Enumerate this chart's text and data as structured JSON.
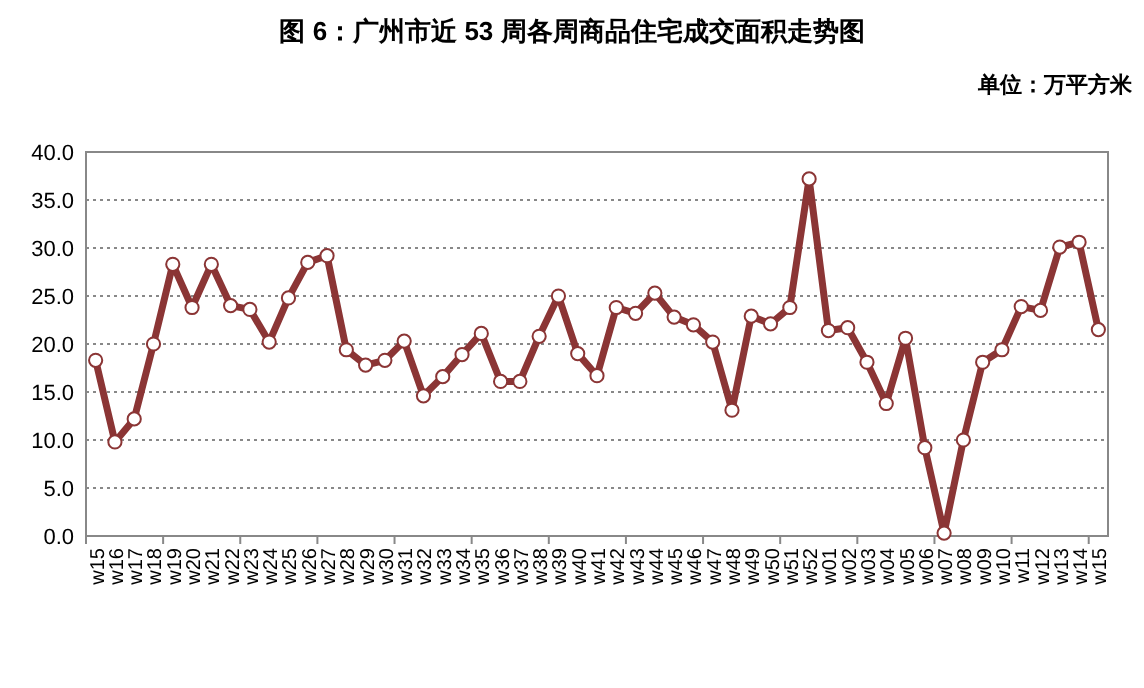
{
  "chart_data": {
    "type": "line",
    "title": "图 6：广州市近 53 周各周商品住宅成交面积走势图",
    "ylabel": "单位：万平方米",
    "categories": [
      "w15",
      "w16",
      "w17",
      "w18",
      "w19",
      "w20",
      "w21",
      "w22",
      "w23",
      "w24",
      "w25",
      "w26",
      "w27",
      "w28",
      "w29",
      "w30",
      "w31",
      "w32",
      "w33",
      "w34",
      "w35",
      "w36",
      "w37",
      "w38",
      "w39",
      "w40",
      "w41",
      "w42",
      "w43",
      "w44",
      "w45",
      "w46",
      "w47",
      "w48",
      "w49",
      "w50",
      "w51",
      "w52",
      "w01",
      "w02",
      "w03",
      "w04",
      "w05",
      "w06",
      "w07",
      "w08",
      "w09",
      "w10",
      "w11",
      "w12",
      "w13",
      "w14",
      "w15"
    ],
    "series": [
      {
        "color": "#8b3535",
        "values": [
          18.3,
          9.8,
          12.2,
          20.0,
          28.3,
          23.8,
          28.3,
          24.0,
          23.6,
          20.2,
          24.8,
          28.5,
          29.2,
          19.4,
          17.8,
          18.3,
          20.3,
          14.6,
          16.6,
          18.9,
          21.1,
          16.1,
          16.1,
          20.8,
          25.0,
          19.0,
          16.7,
          23.8,
          23.2,
          25.3,
          22.8,
          22.0,
          20.2,
          13.1,
          22.9,
          22.1,
          23.8,
          37.2,
          21.4,
          21.7,
          18.1,
          13.8,
          20.6,
          9.2,
          0.3,
          10.0,
          18.1,
          19.4,
          23.9,
          23.5,
          30.1,
          30.6,
          21.5
        ]
      }
    ],
    "ylim": [
      0,
      40
    ],
    "yticks": [
      {
        "value": 0,
        "label": "0.0"
      },
      {
        "value": 5,
        "label": "5.0"
      },
      {
        "value": 10,
        "label": "10.0"
      },
      {
        "value": 15,
        "label": "15.0"
      },
      {
        "value": 20,
        "label": "20.0"
      },
      {
        "value": 25,
        "label": "25.0"
      },
      {
        "value": 30,
        "label": "30.0"
      },
      {
        "value": 35,
        "label": "35.0"
      },
      {
        "value": 40,
        "label": "40.0"
      }
    ],
    "grid": "y",
    "marker": "circle",
    "line_style": "solid"
  }
}
